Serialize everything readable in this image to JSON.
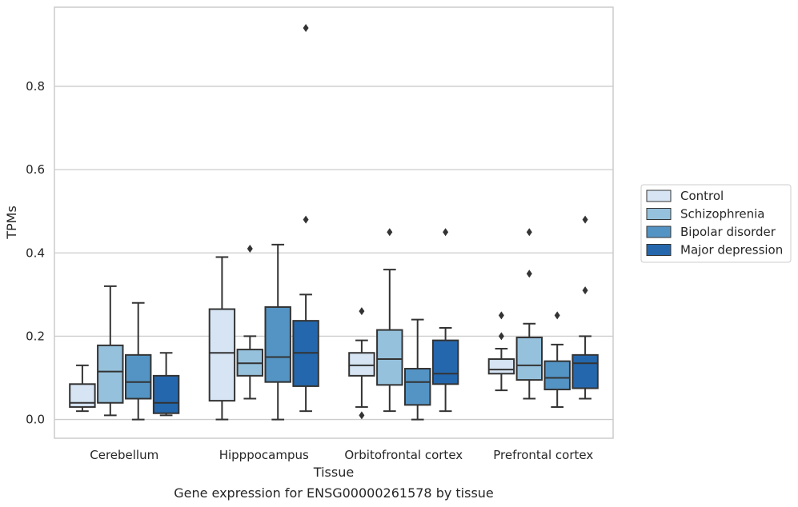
{
  "caption": "Gene expression for ENSG00000261578 by tissue",
  "chart_data": {
    "type": "boxplot",
    "xlabel": "Tissue",
    "ylabel": "TPMs",
    "ylim": [
      -0.045,
      0.99
    ],
    "yticks": [
      "0.0",
      "0.2",
      "0.4",
      "0.6",
      "0.8"
    ],
    "ytick_values": [
      0.0,
      0.2,
      0.4,
      0.6,
      0.8
    ],
    "grid": "horizontal",
    "legend_position": "right",
    "categories": [
      "Cerebellum",
      "Hipppocampus",
      "Orbitofrontal cortex",
      "Prefrontal cortex"
    ],
    "series": [
      {
        "name": "Control",
        "color": "#d6e4f3",
        "boxes": [
          {
            "whisker_low": 0.02,
            "q1": 0.03,
            "median": 0.04,
            "q3": 0.085,
            "whisker_high": 0.13,
            "outliers": []
          },
          {
            "whisker_low": 0.0,
            "q1": 0.045,
            "median": 0.16,
            "q3": 0.265,
            "whisker_high": 0.39,
            "outliers": []
          },
          {
            "whisker_low": 0.03,
            "q1": 0.105,
            "median": 0.13,
            "q3": 0.16,
            "whisker_high": 0.19,
            "outliers": [
              0.01,
              0.26
            ]
          },
          {
            "whisker_low": 0.07,
            "q1": 0.11,
            "median": 0.12,
            "q3": 0.145,
            "whisker_high": 0.17,
            "outliers": [
              0.2,
              0.25
            ]
          }
        ]
      },
      {
        "name": "Schizophrenia",
        "color": "#95c1dc",
        "boxes": [
          {
            "whisker_low": 0.01,
            "q1": 0.04,
            "median": 0.115,
            "q3": 0.178,
            "whisker_high": 0.32,
            "outliers": []
          },
          {
            "whisker_low": 0.05,
            "q1": 0.105,
            "median": 0.135,
            "q3": 0.168,
            "whisker_high": 0.2,
            "outliers": [
              0.41
            ]
          },
          {
            "whisker_low": 0.02,
            "q1": 0.083,
            "median": 0.145,
            "q3": 0.215,
            "whisker_high": 0.36,
            "outliers": [
              0.45
            ]
          },
          {
            "whisker_low": 0.05,
            "q1": 0.095,
            "median": 0.13,
            "q3": 0.197,
            "whisker_high": 0.23,
            "outliers": [
              0.35,
              0.45
            ]
          }
        ]
      },
      {
        "name": "Bipolar disorder",
        "color": "#5394c4",
        "boxes": [
          {
            "whisker_low": 0.0,
            "q1": 0.05,
            "median": 0.09,
            "q3": 0.155,
            "whisker_high": 0.28,
            "outliers": []
          },
          {
            "whisker_low": 0.0,
            "q1": 0.09,
            "median": 0.15,
            "q3": 0.27,
            "whisker_high": 0.42,
            "outliers": []
          },
          {
            "whisker_low": 0.0,
            "q1": 0.035,
            "median": 0.09,
            "q3": 0.122,
            "whisker_high": 0.24,
            "outliers": []
          },
          {
            "whisker_low": 0.03,
            "q1": 0.072,
            "median": 0.1,
            "q3": 0.14,
            "whisker_high": 0.18,
            "outliers": [
              0.25
            ]
          }
        ]
      },
      {
        "name": "Major depression",
        "color": "#2567ac",
        "boxes": [
          {
            "whisker_low": 0.01,
            "q1": 0.015,
            "median": 0.04,
            "q3": 0.105,
            "whisker_high": 0.16,
            "outliers": []
          },
          {
            "whisker_low": 0.02,
            "q1": 0.08,
            "median": 0.16,
            "q3": 0.237,
            "whisker_high": 0.3,
            "outliers": [
              0.48,
              0.94
            ]
          },
          {
            "whisker_low": 0.02,
            "q1": 0.085,
            "median": 0.11,
            "q3": 0.19,
            "whisker_high": 0.22,
            "outliers": [
              0.45
            ]
          },
          {
            "whisker_low": 0.05,
            "q1": 0.075,
            "median": 0.135,
            "q3": 0.155,
            "whisker_high": 0.2,
            "outliers": [
              0.31,
              0.48
            ]
          }
        ]
      }
    ]
  }
}
